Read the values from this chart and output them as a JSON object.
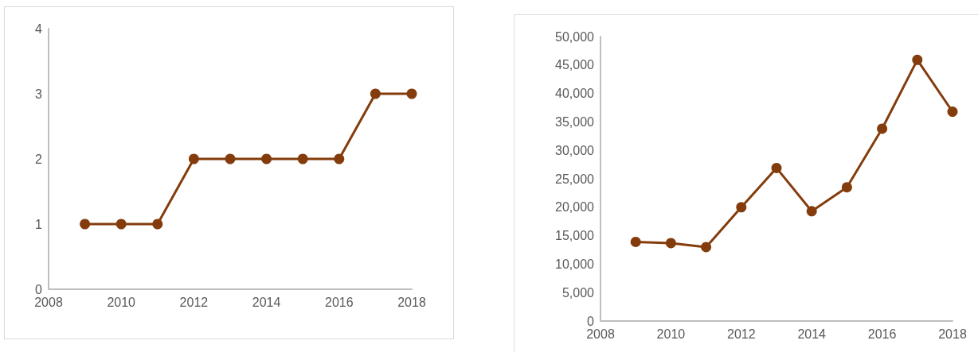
{
  "chart_data": [
    {
      "type": "line",
      "x": [
        2009,
        2010,
        2011,
        2012,
        2013,
        2014,
        2015,
        2016,
        2017,
        2018
      ],
      "series": [
        {
          "color": "#843c0c",
          "values": [
            1,
            1,
            1,
            2,
            2,
            2,
            2,
            2,
            3,
            3
          ]
        }
      ],
      "xlim": [
        2008,
        2018
      ],
      "xticks": [
        2008,
        2010,
        2012,
        2014,
        2016,
        2018
      ],
      "ylim": [
        0,
        4
      ],
      "yticks": [
        0,
        1,
        2,
        3,
        4
      ],
      "marker": "circle",
      "line_style": "solid"
    },
    {
      "type": "line",
      "x": [
        2009,
        2010,
        2011,
        2012,
        2013,
        2014,
        2015,
        2016,
        2017,
        2018
      ],
      "series": [
        {
          "color": "#843c0c",
          "values": [
            13900,
            13700,
            13000,
            20000,
            26900,
            19300,
            23500,
            33800,
            45900,
            36800
          ]
        }
      ],
      "xlim": [
        2008,
        2018
      ],
      "xticks": [
        2008,
        2010,
        2012,
        2014,
        2016,
        2018
      ],
      "ylim": [
        0,
        50000
      ],
      "yticks": [
        0,
        {
          "value": 5000,
          "label": "5,000"
        },
        {
          "value": 10000,
          "label": "10,000"
        },
        {
          "value": 15000,
          "label": "15,000"
        },
        {
          "value": 20000,
          "label": "20,000"
        },
        {
          "value": 25000,
          "label": "25,000"
        },
        {
          "value": 30000,
          "label": "30,000"
        },
        {
          "value": 35000,
          "label": "35,000"
        },
        {
          "value": 40000,
          "label": "40,000"
        },
        {
          "value": 45000,
          "label": "45,000"
        },
        {
          "value": 50000,
          "label": "50,000"
        }
      ],
      "marker": "circle",
      "line_style": "solid"
    }
  ]
}
